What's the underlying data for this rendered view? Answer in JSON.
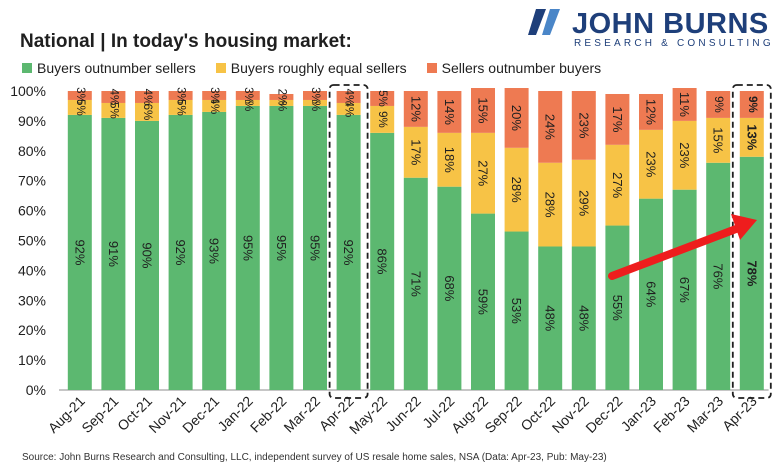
{
  "title": "National | In today's housing market:",
  "logo": {
    "name": "JOHN BURNS",
    "sub": "RESEARCH & CONSULTING"
  },
  "source": "Source: John Burns Research and Consulting, LLC, independent survey of US resale home sales, NSA (Data: Apr-23, Pub: May-23)",
  "colors": {
    "buyers": "#5cb870",
    "equal": "#f7c346",
    "sellers": "#ee7a52",
    "arrow": "#ee1d1d",
    "logo": "#1e3f7a"
  },
  "chart_data": {
    "type": "bar",
    "stacked": true,
    "categories": [
      "Aug-21",
      "Sep-21",
      "Oct-21",
      "Nov-21",
      "Dec-21",
      "Jan-22",
      "Feb-22",
      "Mar-22",
      "Apr-22",
      "May-22",
      "Jun-22",
      "Jul-22",
      "Aug-22",
      "Sep-22",
      "Oct-22",
      "Nov-22",
      "Dec-22",
      "Jan-23",
      "Feb-23",
      "Mar-23",
      "Apr-23"
    ],
    "series": [
      {
        "name": "Buyers outnumber sellers",
        "values": [
          92,
          91,
          90,
          92,
          93,
          95,
          95,
          95,
          92,
          86,
          71,
          68,
          59,
          53,
          48,
          48,
          55,
          64,
          67,
          76,
          78
        ]
      },
      {
        "name": "Buyers roughly equal sellers",
        "values": [
          5,
          5,
          6,
          5,
          4,
          2,
          2,
          2,
          4,
          9,
          17,
          18,
          27,
          28,
          28,
          29,
          27,
          23,
          23,
          15,
          13
        ]
      },
      {
        "name": "Sellers outnumber buyers",
        "values": [
          3,
          4,
          4,
          3,
          3,
          3,
          2,
          3,
          4,
          5,
          12,
          14,
          15,
          20,
          24,
          23,
          17,
          12,
          11,
          9,
          9
        ]
      }
    ],
    "labels": [
      [
        "92%",
        "91%",
        "90%",
        "92%",
        "93%",
        "95%",
        "95%",
        "95%",
        "92%",
        "86%",
        "71%",
        "68%",
        "59%",
        "53%",
        "48%",
        "48%",
        "55%",
        "64%",
        "67%",
        "76%",
        "78%"
      ],
      [
        "5%",
        "5%",
        "6%",
        "5%",
        "4%",
        "2%",
        "2%",
        "2%",
        "4%",
        "9%",
        "17%",
        "18%",
        "27%",
        "28%",
        "28%",
        "29%",
        "27%",
        "23%",
        "23%",
        "15%",
        "13%"
      ],
      [
        "3%",
        "4%",
        "4%",
        "3%",
        "3%",
        "3%",
        "2%",
        "3%",
        "4%",
        "5%",
        "12%",
        "14%",
        "15%",
        "20%",
        "24%",
        "23%",
        "17%",
        "12%",
        "11%",
        "9%",
        "9%"
      ]
    ],
    "yticks": [
      "0%",
      "10%",
      "20%",
      "30%",
      "40%",
      "50%",
      "60%",
      "70%",
      "80%",
      "90%",
      "100%"
    ],
    "ylim": [
      0,
      100
    ],
    "highlighted": [
      "Apr-22",
      "Apr-23"
    ],
    "legend_position": "top",
    "grid": false
  }
}
